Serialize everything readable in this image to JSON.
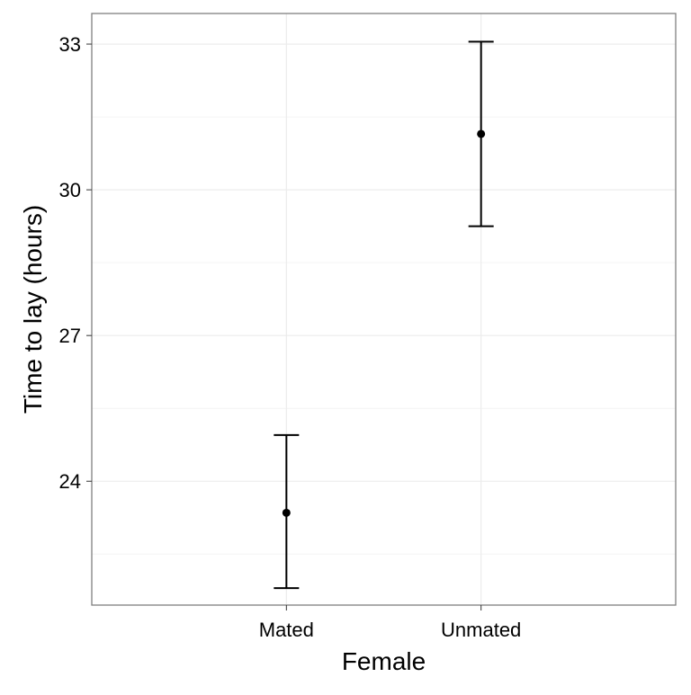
{
  "chart_data": {
    "type": "errorbar",
    "title": "",
    "xlabel": "Female",
    "ylabel": "Time to lay (hours)",
    "categories": [
      "Mated",
      "Unmated"
    ],
    "points": [
      {
        "category": "Mated",
        "mean": 23.35,
        "lower": 21.8,
        "upper": 24.95
      },
      {
        "category": "Unmated",
        "mean": 31.15,
        "lower": 29.25,
        "upper": 33.05
      }
    ],
    "yticks": [
      24,
      27,
      30,
      33
    ],
    "yticklabels": [
      "24",
      "27",
      "30",
      "33"
    ],
    "ylim": [
      21.45,
      33.63
    ],
    "grid": true,
    "legend": "none",
    "colors": {
      "point": "#000000",
      "errorbar": "#000000",
      "grid": "#ebebeb",
      "panel_border": "#7f7f7f",
      "text": "#000000"
    }
  }
}
